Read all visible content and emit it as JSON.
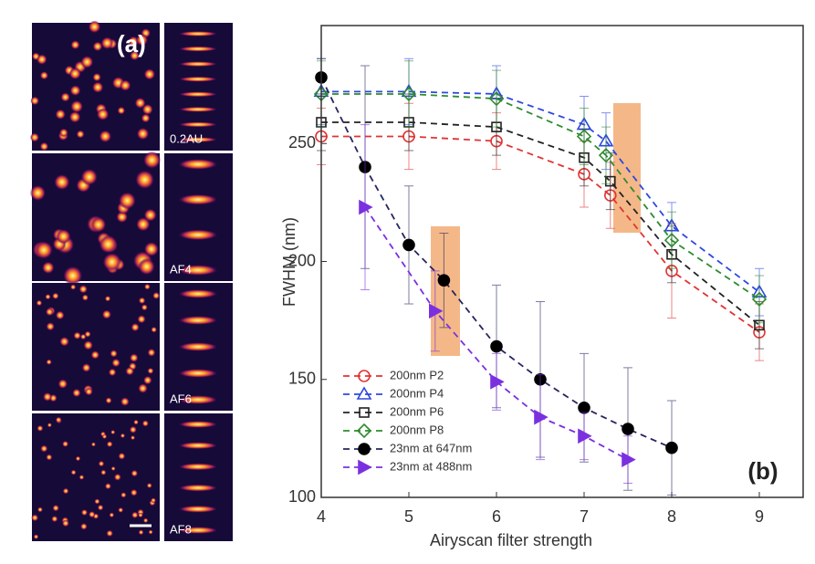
{
  "panel_a": {
    "label": "(a)",
    "images": [
      {
        "label": "0.2AU"
      },
      {
        "label": "AF4"
      },
      {
        "label": "AF6"
      },
      {
        "label": "AF8"
      }
    ]
  },
  "chart_data": {
    "type": "line",
    "panel_label": "(b)",
    "x_label": "Airyscan filter strength",
    "y_label": "FWHM (nm)",
    "xlim": [
      4,
      9.5
    ],
    "xticks": [
      4,
      5,
      6,
      7,
      8,
      9
    ],
    "ylim": [
      100,
      300
    ],
    "yticks": [
      100,
      150,
      200,
      250
    ],
    "legend": "lower left",
    "series": [
      {
        "name": "200nm P2",
        "color": "#e03434",
        "marker": "circle",
        "x": [
          4,
          5,
          6,
          7,
          7.3,
          8,
          9
        ],
        "values": [
          253,
          253,
          251,
          237,
          228,
          196,
          170
        ],
        "errors": [
          12,
          14,
          12,
          14,
          14,
          20,
          12
        ]
      },
      {
        "name": "200nm P4",
        "color": "#2e48e0",
        "marker": "triangle",
        "x": [
          4,
          5,
          6,
          7,
          7.25,
          8,
          9
        ],
        "values": [
          272,
          272,
          271,
          258,
          251,
          215,
          187
        ],
        "errors": [
          14,
          14,
          12,
          12,
          12,
          10,
          10
        ]
      },
      {
        "name": "200nm P6",
        "color": "#222222",
        "marker": "square",
        "x": [
          4,
          5,
          6,
          7,
          7.3,
          8,
          9
        ],
        "values": [
          259,
          259,
          257,
          244,
          234,
          203,
          173
        ],
        "errors": [
          12,
          12,
          12,
          12,
          12,
          12,
          10
        ]
      },
      {
        "name": "200nm P8",
        "color": "#2e8b2e",
        "marker": "diamond",
        "x": [
          4,
          5,
          6,
          7,
          7.25,
          8,
          9
        ],
        "values": [
          271,
          271,
          269,
          253,
          245,
          209,
          184
        ],
        "errors": [
          14,
          14,
          12,
          12,
          12,
          12,
          10
        ]
      },
      {
        "name": "23nm at 647nm",
        "color": "#262660",
        "marker": "dot",
        "x": [
          4,
          4.5,
          5,
          5.4,
          6,
          6.5,
          7,
          7.5,
          8
        ],
        "values": [
          278,
          240,
          207,
          192,
          164,
          150,
          138,
          129,
          121
        ],
        "errors": [
          8,
          43,
          25,
          20,
          26,
          33,
          23,
          26,
          20
        ]
      },
      {
        "name": "23nm at 488nm",
        "color": "#7b30e0",
        "marker": "right-triangle",
        "x": [
          4.5,
          5.3,
          6,
          6.5,
          7,
          7.5
        ],
        "values": [
          223,
          179,
          149,
          134,
          126,
          116
        ],
        "errors": [
          35,
          17,
          12,
          18,
          10,
          10
        ]
      }
    ]
  }
}
